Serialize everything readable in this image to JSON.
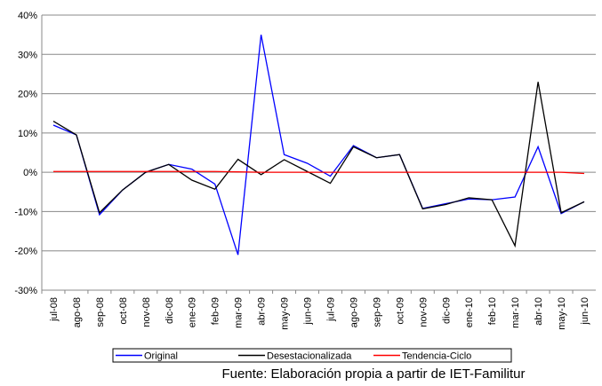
{
  "chart_data": {
    "type": "line",
    "categories": [
      "jul-08",
      "ago-08",
      "sep-08",
      "oct-08",
      "nov-08",
      "dic-08",
      "ene-09",
      "feb-09",
      "mar-09",
      "abr-09",
      "may-09",
      "jun-09",
      "jul-09",
      "ago-09",
      "sep-09",
      "oct-09",
      "nov-09",
      "dic-09",
      "ene-10",
      "feb-10",
      "mar-10",
      "abr-10",
      "may-10",
      "jun-10"
    ],
    "series": [
      {
        "name": "Original",
        "color": "#0000ff",
        "values": [
          12,
          9.5,
          -10.8,
          -4.5,
          0,
          2,
          0.8,
          -3,
          -21,
          35,
          4.5,
          2.3,
          -1,
          6.8,
          3.7,
          4.5,
          -9.2,
          -8,
          -6.8,
          -7,
          -6.3,
          6.5,
          -10.5,
          -7.5
        ]
      },
      {
        "name": "Desestacionalizada",
        "color": "#000000",
        "values": [
          13,
          9.5,
          -10.3,
          -4.5,
          0,
          2,
          -2,
          -4.3,
          3.3,
          -0.6,
          3.2,
          0.2,
          -2.8,
          6.5,
          3.7,
          4.5,
          -9.3,
          -8.2,
          -6.5,
          -7,
          -18.7,
          23,
          -10.3,
          -7.5
        ]
      },
      {
        "name": "Tendencia-Ciclo",
        "color": "#ff0000",
        "values": [
          0.2,
          0.2,
          0.2,
          0.2,
          0.2,
          0.2,
          0.2,
          0.2,
          0.1,
          0,
          0,
          0,
          0,
          0,
          0,
          0,
          0,
          0,
          0,
          0,
          0,
          0,
          0,
          -0.3
        ]
      }
    ],
    "ylim": [
      -30,
      40
    ],
    "yticks": [
      {
        "value": -30,
        "label": "-30%"
      },
      {
        "value": -20,
        "label": "-20%"
      },
      {
        "value": -10,
        "label": "-10%"
      },
      {
        "value": 0,
        "label": "0%"
      },
      {
        "value": 10,
        "label": "10%"
      },
      {
        "value": 20,
        "label": "20%"
      },
      {
        "value": 30,
        "label": "30%"
      },
      {
        "value": 40,
        "label": "40%"
      }
    ],
    "grid": true,
    "legend": "bottom",
    "source": "Fuente: Elaboración propia a partir de IET-Familitur"
  }
}
